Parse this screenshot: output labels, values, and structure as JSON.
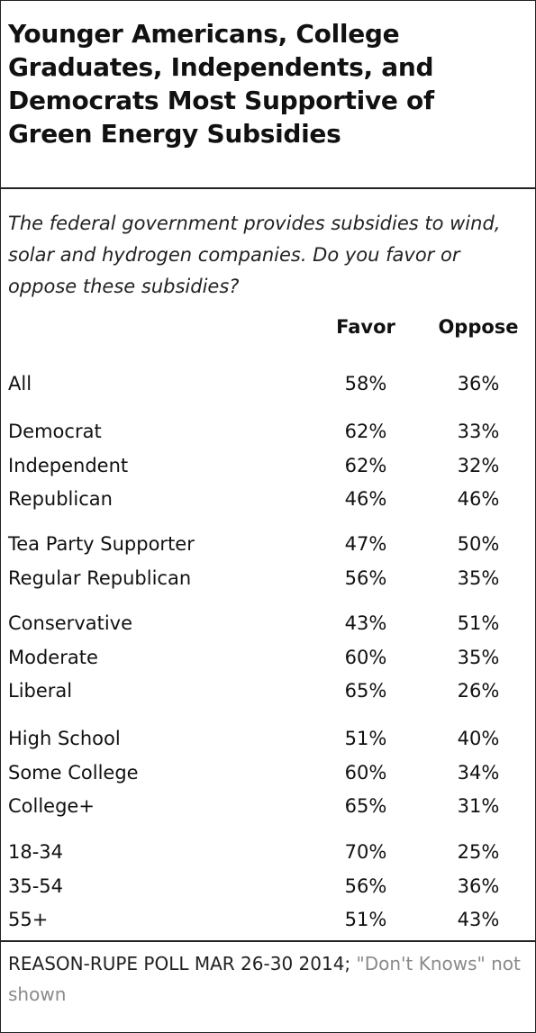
{
  "title": "Younger Americans, College Graduates, Independents, and Democrats Most Supportive of Green Energy Subsidies",
  "question": "The federal government provides subsidies to wind, solar and hydrogen companies. Do you favor or oppose these subsidies?",
  "columns": {
    "favor": "Favor",
    "oppose": "Oppose"
  },
  "footer": {
    "source": "REASON-RUPE POLL MAR 26-30 2014;",
    "note": "\"Don't Knows\" not shown"
  },
  "chart_data": {
    "type": "table",
    "title": "Younger Americans, College Graduates, Independents, and Democrats Most Supportive of Green Energy Subsidies",
    "columns": [
      "Favor",
      "Oppose"
    ],
    "groups": [
      {
        "rows": [
          {
            "label": "All",
            "favor": "58%",
            "oppose": "36%"
          }
        ]
      },
      {
        "rows": [
          {
            "label": "Democrat",
            "favor": "62%",
            "oppose": "33%"
          },
          {
            "label": "Independent",
            "favor": "62%",
            "oppose": "32%"
          },
          {
            "label": "Republican",
            "favor": "46%",
            "oppose": "46%"
          }
        ]
      },
      {
        "rows": [
          {
            "label": "Tea Party Supporter",
            "favor": "47%",
            "oppose": "50%"
          },
          {
            "label": "Regular Republican",
            "favor": "56%",
            "oppose": "35%"
          }
        ]
      },
      {
        "rows": [
          {
            "label": "Conservative",
            "favor": "43%",
            "oppose": "51%"
          },
          {
            "label": "Moderate",
            "favor": "60%",
            "oppose": "35%"
          },
          {
            "label": "Liberal",
            "favor": "65%",
            "oppose": "26%"
          }
        ]
      },
      {
        "rows": [
          {
            "label": "High School",
            "favor": "51%",
            "oppose": "40%"
          },
          {
            "label": "Some College",
            "favor": "60%",
            "oppose": "34%"
          },
          {
            "label": "College+",
            "favor": "65%",
            "oppose": "31%"
          }
        ]
      },
      {
        "rows": [
          {
            "label": "18-34",
            "favor": "70%",
            "oppose": "25%"
          },
          {
            "label": "35-54",
            "favor": "56%",
            "oppose": "36%"
          },
          {
            "label": "55+",
            "favor": "51%",
            "oppose": "43%"
          }
        ]
      }
    ]
  }
}
